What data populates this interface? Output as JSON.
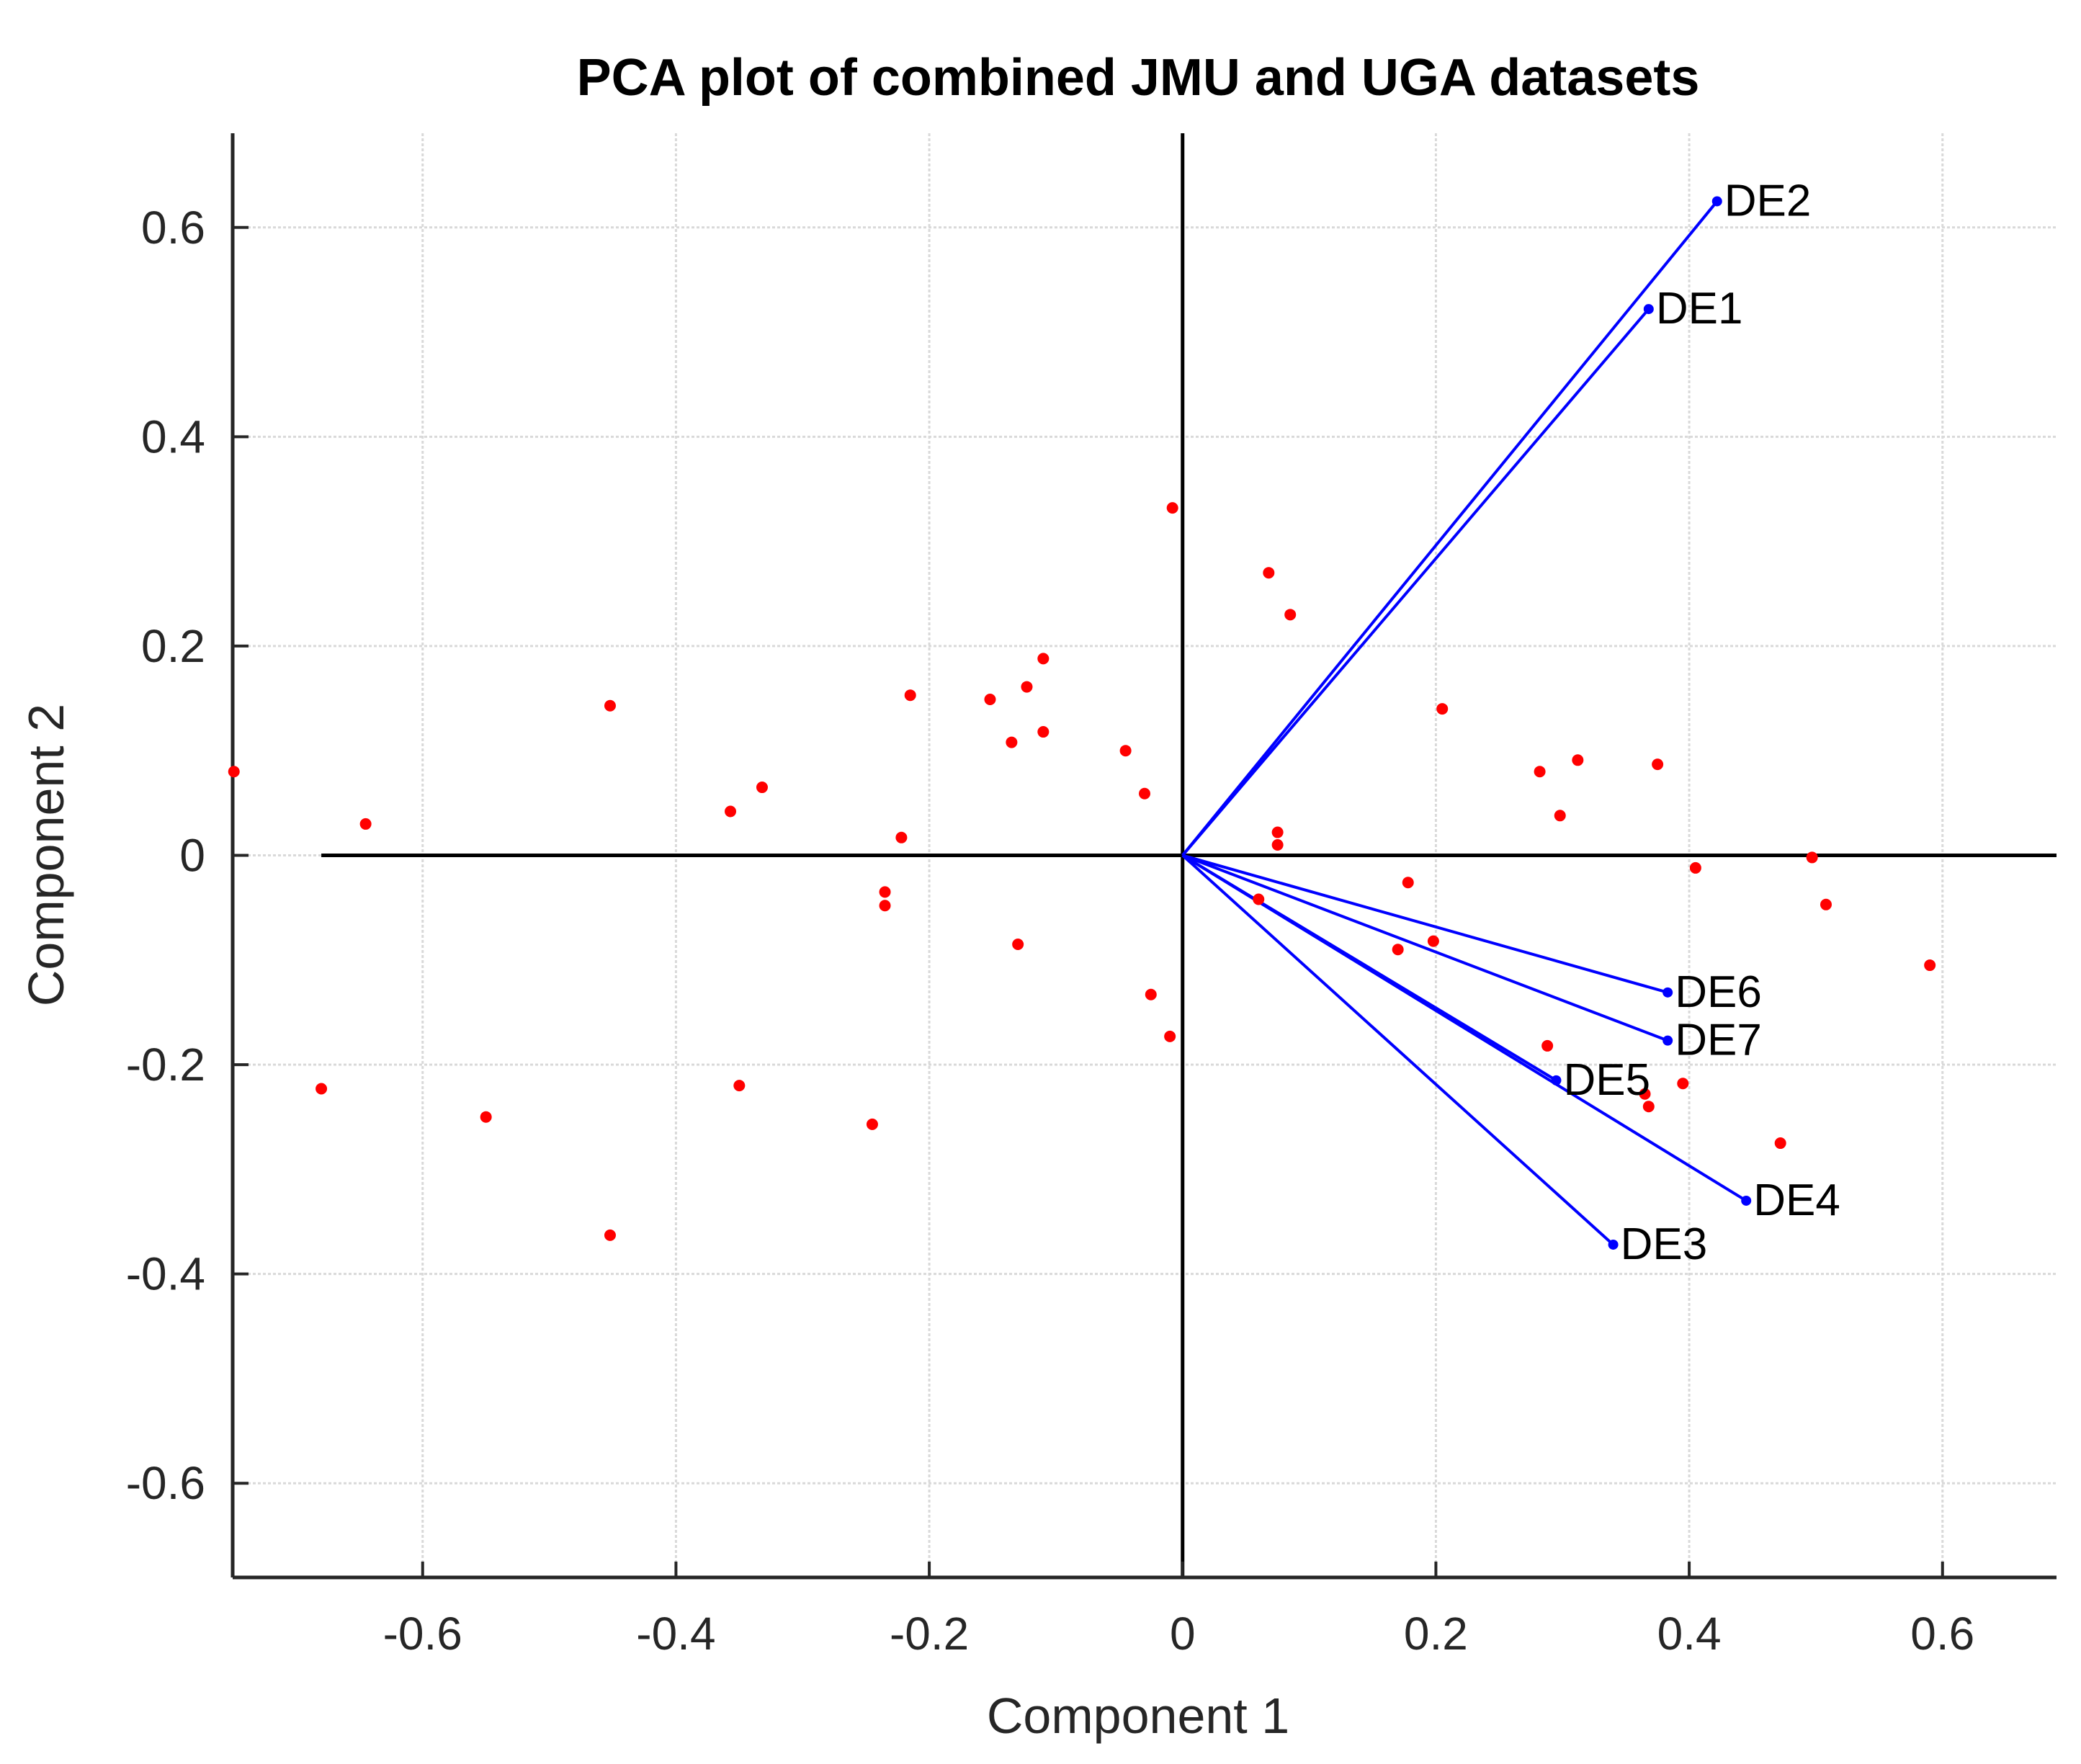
{
  "chart_data": {
    "type": "scatter",
    "subtype": "biplot",
    "title": "PCA plot of combined JMU and UGA datasets",
    "xlabel": "Component 1",
    "ylabel": "Component 2",
    "xlim": [
      -0.75,
      0.69
    ],
    "ylim": [
      -0.69,
      0.69
    ],
    "xticks": [
      -0.6,
      -0.4,
      -0.2,
      0,
      0.2,
      0.4,
      0.6
    ],
    "xtick_labels": [
      "-0.6",
      "-0.4",
      "-0.2",
      "0",
      "0.2",
      "0.4",
      "0.6"
    ],
    "yticks": [
      -0.6,
      -0.4,
      -0.2,
      0,
      0.2,
      0.4,
      0.6
    ],
    "ytick_labels": [
      "-0.6",
      "-0.4",
      "-0.2",
      "0",
      "0.2",
      "0.4",
      "0.6"
    ],
    "grid": true,
    "reference_lines": {
      "horizontal_x_range": [
        -0.68,
        0.69
      ],
      "vertical_y_range": [
        -0.69,
        0.69
      ]
    },
    "vectors": [
      {
        "label": "DE1",
        "x": 0.368,
        "y": 0.522
      },
      {
        "label": "DE2",
        "x": 0.422,
        "y": 0.625
      },
      {
        "label": "DE3",
        "x": 0.34,
        "y": -0.372
      },
      {
        "label": "DE4",
        "x": 0.445,
        "y": -0.33
      },
      {
        "label": "DE5",
        "x": 0.295,
        "y": -0.215
      },
      {
        "label": "DE6",
        "x": 0.383,
        "y": -0.131
      },
      {
        "label": "DE7",
        "x": 0.383,
        "y": -0.177
      }
    ],
    "points": [
      {
        "x": -0.749,
        "y": 0.08
      },
      {
        "x": -0.645,
        "y": 0.03
      },
      {
        "x": -0.68,
        "y": -0.223
      },
      {
        "x": -0.55,
        "y": -0.25
      },
      {
        "x": -0.452,
        "y": 0.143
      },
      {
        "x": -0.452,
        "y": -0.363
      },
      {
        "x": -0.357,
        "y": 0.042
      },
      {
        "x": -0.332,
        "y": 0.065
      },
      {
        "x": -0.35,
        "y": -0.22
      },
      {
        "x": -0.245,
        "y": -0.257
      },
      {
        "x": -0.235,
        "y": -0.035
      },
      {
        "x": -0.235,
        "y": -0.048
      },
      {
        "x": -0.222,
        "y": 0.017
      },
      {
        "x": -0.215,
        "y": 0.153
      },
      {
        "x": -0.152,
        "y": 0.149
      },
      {
        "x": -0.135,
        "y": 0.108
      },
      {
        "x": -0.13,
        "y": -0.085
      },
      {
        "x": -0.123,
        "y": 0.161
      },
      {
        "x": -0.11,
        "y": 0.188
      },
      {
        "x": -0.11,
        "y": 0.118
      },
      {
        "x": -0.045,
        "y": 0.1
      },
      {
        "x": -0.03,
        "y": 0.059
      },
      {
        "x": -0.025,
        "y": -0.133
      },
      {
        "x": -0.01,
        "y": -0.173
      },
      {
        "x": -0.008,
        "y": 0.332
      },
      {
        "x": 0.06,
        "y": -0.042
      },
      {
        "x": 0.068,
        "y": 0.27
      },
      {
        "x": 0.075,
        "y": 0.022
      },
      {
        "x": 0.075,
        "y": 0.01
      },
      {
        "x": 0.085,
        "y": 0.23
      },
      {
        "x": 0.17,
        "y": -0.09
      },
      {
        "x": 0.178,
        "y": -0.026
      },
      {
        "x": 0.198,
        "y": -0.082
      },
      {
        "x": 0.205,
        "y": 0.14
      },
      {
        "x": 0.282,
        "y": 0.08
      },
      {
        "x": 0.288,
        "y": -0.182
      },
      {
        "x": 0.298,
        "y": 0.038
      },
      {
        "x": 0.312,
        "y": 0.091
      },
      {
        "x": 0.365,
        "y": -0.228
      },
      {
        "x": 0.368,
        "y": -0.24
      },
      {
        "x": 0.375,
        "y": 0.087
      },
      {
        "x": 0.395,
        "y": -0.218
      },
      {
        "x": 0.405,
        "y": -0.012
      },
      {
        "x": 0.472,
        "y": -0.275
      },
      {
        "x": 0.497,
        "y": -0.002
      },
      {
        "x": 0.508,
        "y": -0.047
      },
      {
        "x": 0.59,
        "y": -0.105
      }
    ],
    "colors": {
      "vector": "#0000ff",
      "point": "#ff0000",
      "axis": "#262626",
      "zero_line": "#000000",
      "grid": "#d9d9d9"
    }
  }
}
